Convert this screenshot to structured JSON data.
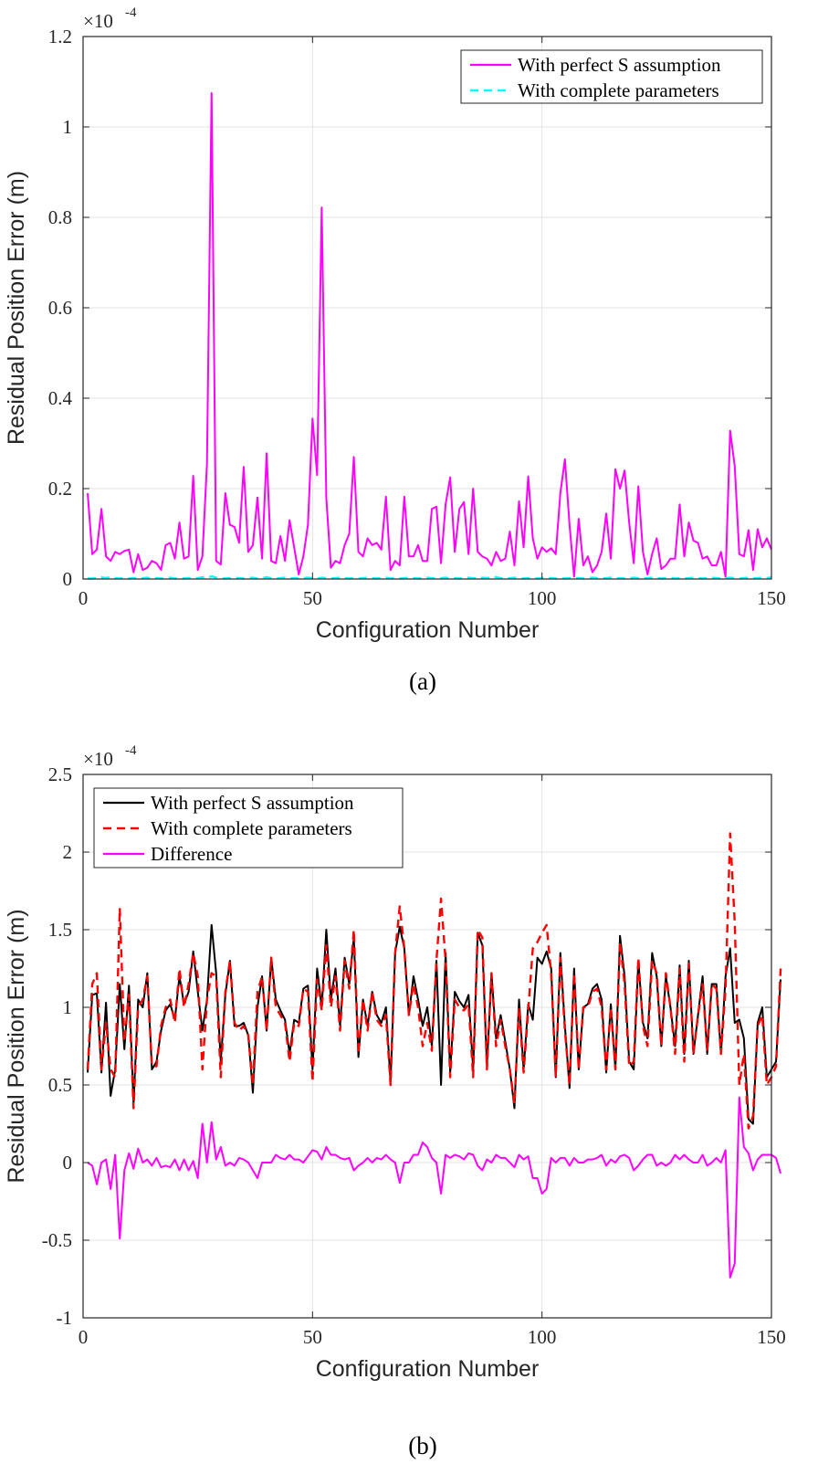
{
  "chart_data": [
    {
      "type": "line",
      "caption": "(a)",
      "xlabel": "Configuration Number",
      "ylabel": "Residual Position Error (m)",
      "y_multiplier_base": "×10",
      "y_multiplier_exp": "-4",
      "xlim": [
        0,
        150
      ],
      "ylim": [
        0,
        1.2
      ],
      "xticks": [
        0,
        50,
        100,
        150
      ],
      "yticks": [
        0,
        0.2,
        0.4,
        0.6,
        0.8,
        1,
        1.2
      ],
      "ytick_labels": [
        "0",
        "0.2",
        "0.4",
        "0.6",
        "0.8",
        "1",
        "1.2"
      ],
      "grid": true,
      "legend_position": "top-right",
      "series": [
        {
          "name": "With perfect S assumption",
          "color": "#ff00ff",
          "dash": "solid",
          "values": [
            0.19,
            0.055,
            0.065,
            0.155,
            0.05,
            0.04,
            0.06,
            0.055,
            0.062,
            0.065,
            0.015,
            0.055,
            0.02,
            0.025,
            0.04,
            0.035,
            0.02,
            0.075,
            0.08,
            0.045,
            0.125,
            0.045,
            0.05,
            0.228,
            0.02,
            0.05,
            0.255,
            1.075,
            0.04,
            0.032,
            0.19,
            0.12,
            0.115,
            0.08,
            0.248,
            0.06,
            0.075,
            0.18,
            0.045,
            0.278,
            0.04,
            0.035,
            0.095,
            0.04,
            0.13,
            0.07,
            0.01,
            0.05,
            0.12,
            0.355,
            0.23,
            0.822,
            0.18,
            0.025,
            0.04,
            0.035,
            0.075,
            0.1,
            0.27,
            0.06,
            0.05,
            0.09,
            0.075,
            0.08,
            0.065,
            0.182,
            0.02,
            0.04,
            0.03,
            0.182,
            0.05,
            0.05,
            0.075,
            0.04,
            0.04,
            0.155,
            0.16,
            0.035,
            0.165,
            0.225,
            0.06,
            0.155,
            0.17,
            0.055,
            0.2,
            0.06,
            0.05,
            0.045,
            0.03,
            0.06,
            0.04,
            0.045,
            0.105,
            0.03,
            0.172,
            0.07,
            0.227,
            0.09,
            0.045,
            0.07,
            0.06,
            0.068,
            0.055,
            0.19,
            0.265,
            0.12,
            0.005,
            0.133,
            0.03,
            0.05,
            0.015,
            0.03,
            0.06,
            0.145,
            0.045,
            0.243,
            0.2,
            0.24,
            0.125,
            0.035,
            0.205,
            0.06,
            0.01,
            0.055,
            0.09,
            0.022,
            0.03,
            0.045,
            0.045,
            0.165,
            0.05,
            0.125,
            0.085,
            0.08,
            0.045,
            0.05,
            0.03,
            0.03,
            0.06,
            0.005,
            0.328,
            0.25,
            0.055,
            0.05,
            0.108,
            0.02,
            0.11,
            0.07,
            0.09,
            0.065
          ]
        },
        {
          "name": "With complete parameters",
          "color": "#00ffff",
          "dash": "dashed",
          "values": [
            0.001,
            0.001,
            0.002,
            0.004,
            0.002,
            0.005,
            0.002,
            0.001,
            0.003,
            0.001,
            0.002,
            0.001,
            0.002,
            0.003,
            0.001,
            0.002,
            0.001,
            0.002,
            0.003,
            0.001,
            0.002,
            0.001,
            0.002,
            0.003,
            0.002,
            0.004,
            0.002,
            0.006,
            0.003,
            0.002,
            0.001,
            0.002,
            0.003,
            0.002,
            0.001,
            0.002,
            0.003,
            0.001,
            0.002,
            0.004,
            0.002,
            0.001,
            0.002,
            0.003,
            0.001,
            0.002,
            0.001,
            0.002,
            0.003,
            0.002,
            0.001,
            0.003,
            0.002,
            0.001,
            0.002,
            0.003,
            0.002,
            0.001,
            0.002,
            0.001,
            0.002,
            0.003,
            0.002,
            0.001,
            0.002,
            0.003,
            0.001,
            0.002,
            0.001,
            0.002,
            0.003,
            0.002,
            0.001,
            0.002,
            0.003,
            0.002,
            0.001,
            0.002,
            0.003,
            0.001,
            0.002,
            0.001,
            0.002,
            0.003,
            0.002,
            0.001,
            0.003,
            0.002,
            0.005,
            0.004,
            0.002,
            0.001,
            0.002,
            0.003,
            0.002,
            0.001,
            0.002,
            0.003,
            0.001,
            0.002,
            0.003,
            0.002,
            0.001,
            0.002,
            0.001,
            0.002,
            0.003,
            0.002,
            0.001,
            0.002,
            0.003,
            0.002,
            0.001,
            0.002,
            0.003,
            0.001,
            0.002,
            0.001,
            0.002,
            0.003,
            0.002,
            0.001,
            0.002,
            0.003,
            0.002,
            0.001,
            0.002,
            0.003,
            0.001,
            0.002,
            0.001,
            0.002,
            0.003,
            0.002,
            0.001,
            0.002,
            0.003,
            0.002,
            0.001,
            0.002,
            0.003,
            0.002,
            0.001,
            0.002,
            0.003,
            0.001,
            0.002,
            0.003,
            0.002,
            0.004
          ]
        }
      ]
    },
    {
      "type": "line",
      "caption": "(b)",
      "xlabel": "Configuration Number",
      "ylabel": "Residual Position Error (m)",
      "y_multiplier_base": "×10",
      "y_multiplier_exp": "-4",
      "xlim": [
        0,
        150
      ],
      "ylim": [
        -1,
        2.5
      ],
      "xticks": [
        0,
        50,
        100,
        150
      ],
      "yticks": [
        -1,
        -0.5,
        0,
        0.5,
        1,
        1.5,
        2,
        2.5
      ],
      "ytick_labels": [
        "-1",
        "-0.5",
        "0",
        "0.5",
        "1",
        "1.5",
        "2",
        "2.5"
      ],
      "grid": true,
      "legend_position": "top-left",
      "series": [
        {
          "name": "With perfect S assumption",
          "color": "#000000",
          "dash": "solid",
          "values": [
            0.58,
            1.08,
            1.09,
            0.58,
            1.03,
            0.43,
            0.6,
            1.15,
            0.73,
            1.14,
            0.38,
            1.05,
            1.0,
            1.22,
            0.6,
            0.65,
            0.85,
            0.98,
            1.02,
            0.92,
            1.2,
            1.02,
            1.1,
            1.36,
            1.1,
            0.85,
            1.05,
            1.53,
            1.22,
            0.65,
            1.08,
            1.3,
            0.88,
            0.88,
            0.9,
            0.82,
            0.45,
            1.0,
            1.2,
            0.85,
            1.32,
            1.05,
            0.98,
            0.92,
            0.7,
            0.92,
            0.9,
            1.12,
            1.14,
            0.6,
            1.25,
            1.0,
            1.5,
            1.05,
            1.25,
            0.88,
            1.32,
            1.15,
            1.45,
            0.68,
            1.05,
            0.88,
            1.1,
            0.95,
            0.9,
            1.0,
            0.52,
            1.35,
            1.52,
            1.38,
            0.95,
            1.2,
            1.05,
            0.88,
            1.0,
            0.75,
            1.3,
            0.5,
            1.35,
            0.58,
            1.1,
            1.04,
            1.0,
            1.08,
            0.6,
            1.48,
            1.4,
            0.62,
            1.22,
            0.8,
            0.95,
            0.78,
            0.6,
            0.35,
            1.05,
            0.6,
            1.02,
            0.92,
            1.32,
            1.28,
            1.36,
            1.25,
            0.55,
            1.35,
            0.88,
            0.48,
            1.25,
            0.6,
            1.0,
            1.02,
            1.12,
            1.15,
            1.05,
            0.58,
            1.02,
            0.6,
            1.46,
            1.2,
            0.65,
            0.6,
            1.3,
            0.9,
            0.8,
            1.35,
            1.2,
            0.75,
            1.2,
            1.0,
            0.75,
            1.27,
            0.7,
            1.3,
            0.7,
            0.95,
            1.2,
            0.7,
            1.15,
            1.15,
            0.7,
            1.2,
            1.38,
            0.9,
            0.92,
            0.8,
            0.28,
            0.25,
            0.9,
            1.0,
            0.55,
            0.6,
            0.65,
            1.18
          ]
        },
        {
          "name": "With complete parameters",
          "color": "#ff0000",
          "dash": "dashed",
          "values": [
            0.6,
            1.15,
            1.22,
            0.6,
            0.9,
            0.6,
            0.55,
            1.64,
            0.78,
            1.08,
            0.35,
            1.0,
            1.05,
            1.2,
            0.62,
            0.62,
            0.88,
            1.0,
            1.05,
            0.9,
            1.25,
            1.0,
            1.15,
            1.35,
            1.2,
            0.6,
            1.05,
            1.22,
            1.2,
            0.55,
            1.1,
            1.3,
            0.9,
            0.85,
            0.88,
            0.82,
            0.5,
            1.1,
            1.2,
            0.85,
            1.32,
            1.0,
            0.95,
            0.9,
            0.65,
            0.9,
            0.88,
            1.12,
            1.1,
            0.52,
            1.18,
            0.98,
            1.4,
            1.0,
            1.2,
            0.85,
            1.3,
            1.12,
            1.5,
            0.7,
            1.05,
            0.85,
            1.1,
            0.92,
            0.88,
            0.95,
            0.5,
            1.35,
            1.65,
            1.38,
            0.95,
            1.15,
            1.0,
            0.75,
            0.9,
            0.72,
            1.3,
            1.7,
            1.3,
            0.55,
            1.05,
            1.0,
            0.98,
            1.02,
            0.55,
            1.5,
            1.45,
            0.6,
            1.22,
            0.75,
            0.92,
            0.75,
            0.6,
            0.38,
            1.0,
            0.58,
            0.98,
            1.38,
            1.42,
            1.48,
            1.53,
            1.22,
            0.55,
            1.32,
            0.85,
            0.5,
            1.22,
            0.6,
            1.0,
            1.0,
            1.1,
            1.12,
            1.0,
            0.6,
            1.0,
            0.6,
            1.42,
            1.15,
            0.62,
            0.65,
            1.32,
            0.88,
            0.75,
            1.3,
            1.22,
            0.75,
            1.22,
            1.0,
            0.7,
            1.25,
            0.65,
            1.28,
            0.7,
            0.95,
            1.15,
            0.72,
            1.15,
            1.12,
            0.7,
            1.12,
            2.12,
            1.55,
            0.5,
            0.7,
            0.22,
            0.3,
            0.88,
            0.95,
            0.5,
            0.55,
            0.62,
            1.25
          ]
        },
        {
          "name": "Difference",
          "color": "#ff00ff",
          "dash": "solid",
          "values": [
            0.0,
            -0.02,
            -0.14,
            0.0,
            0.02,
            -0.17,
            0.05,
            -0.49,
            -0.05,
            0.06,
            -0.04,
            0.09,
            0.0,
            0.02,
            -0.02,
            0.03,
            -0.03,
            -0.02,
            -0.03,
            0.02,
            -0.05,
            0.02,
            -0.05,
            0.01,
            -0.1,
            0.25,
            0.0,
            0.26,
            0.02,
            0.1,
            -0.02,
            0.0,
            -0.02,
            0.03,
            0.02,
            0.0,
            -0.05,
            -0.1,
            0.0,
            0.0,
            0.0,
            0.05,
            0.03,
            0.02,
            0.05,
            0.02,
            0.02,
            0.0,
            0.04,
            0.08,
            0.07,
            0.02,
            0.1,
            0.05,
            0.05,
            0.03,
            0.02,
            0.03,
            -0.05,
            -0.02,
            0.0,
            0.03,
            0.0,
            0.03,
            0.02,
            0.05,
            0.02,
            0.0,
            -0.13,
            0.0,
            0.0,
            0.05,
            0.05,
            0.13,
            0.1,
            0.03,
            0.0,
            -0.2,
            0.05,
            0.03,
            0.05,
            0.04,
            0.02,
            0.06,
            0.05,
            -0.02,
            -0.05,
            0.02,
            0.0,
            0.05,
            0.03,
            0.03,
            0.0,
            -0.03,
            0.05,
            0.02,
            0.04,
            -0.1,
            -0.1,
            -0.2,
            -0.17,
            0.03,
            0.0,
            0.03,
            0.03,
            -0.02,
            0.03,
            0.0,
            0.0,
            0.02,
            0.02,
            0.03,
            0.05,
            -0.02,
            0.02,
            0.0,
            0.04,
            0.05,
            0.03,
            -0.05,
            -0.02,
            0.02,
            0.05,
            0.05,
            -0.02,
            0.0,
            -0.02,
            0.0,
            0.05,
            0.02,
            0.05,
            0.02,
            0.0,
            0.0,
            0.05,
            -0.02,
            0.0,
            0.03,
            0.0,
            0.08,
            -0.74,
            -0.65,
            0.42,
            0.1,
            0.06,
            -0.05,
            0.02,
            0.05,
            0.05,
            0.05,
            0.03,
            -0.07
          ]
        }
      ]
    }
  ]
}
